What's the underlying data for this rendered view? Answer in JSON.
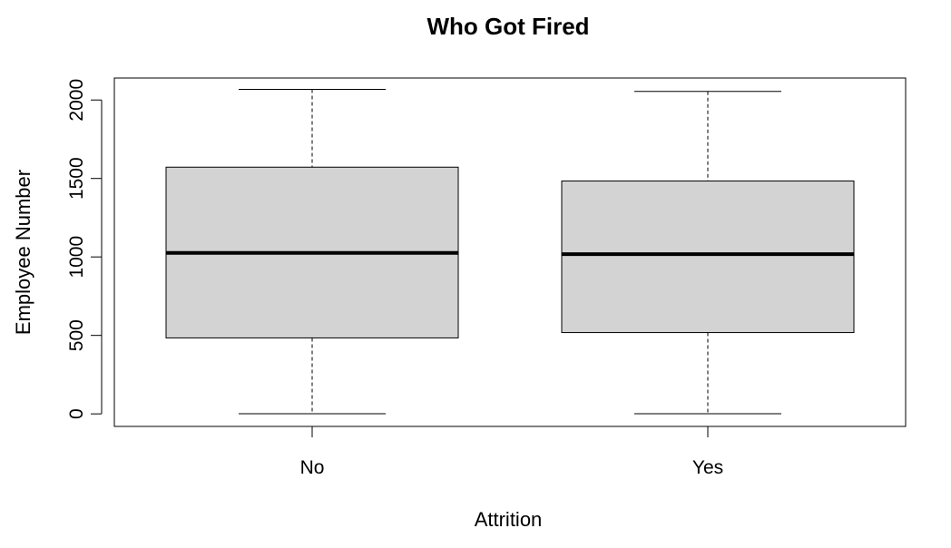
{
  "chart_data": {
    "type": "box",
    "title": "Who Got Fired",
    "xlabel": "Attrition",
    "ylabel": "Employee Number",
    "categories": [
      "No",
      "Yes"
    ],
    "yticks": [
      0,
      500,
      1000,
      1500,
      2000
    ],
    "ytick_labels": [
      "0",
      "500",
      "1000",
      "1500",
      "2000"
    ],
    "ylim": [
      -80,
      2140
    ],
    "grid": false,
    "boxes": [
      {
        "name": "No",
        "min": 1,
        "q1": 484,
        "median": 1026,
        "q3": 1572,
        "max": 2068
      },
      {
        "name": "Yes",
        "min": 1,
        "q1": 518,
        "median": 1018,
        "q3": 1484,
        "max": 2055
      }
    ],
    "colors": {
      "box_fill": "#d3d3d3",
      "stroke": "#000000"
    }
  }
}
